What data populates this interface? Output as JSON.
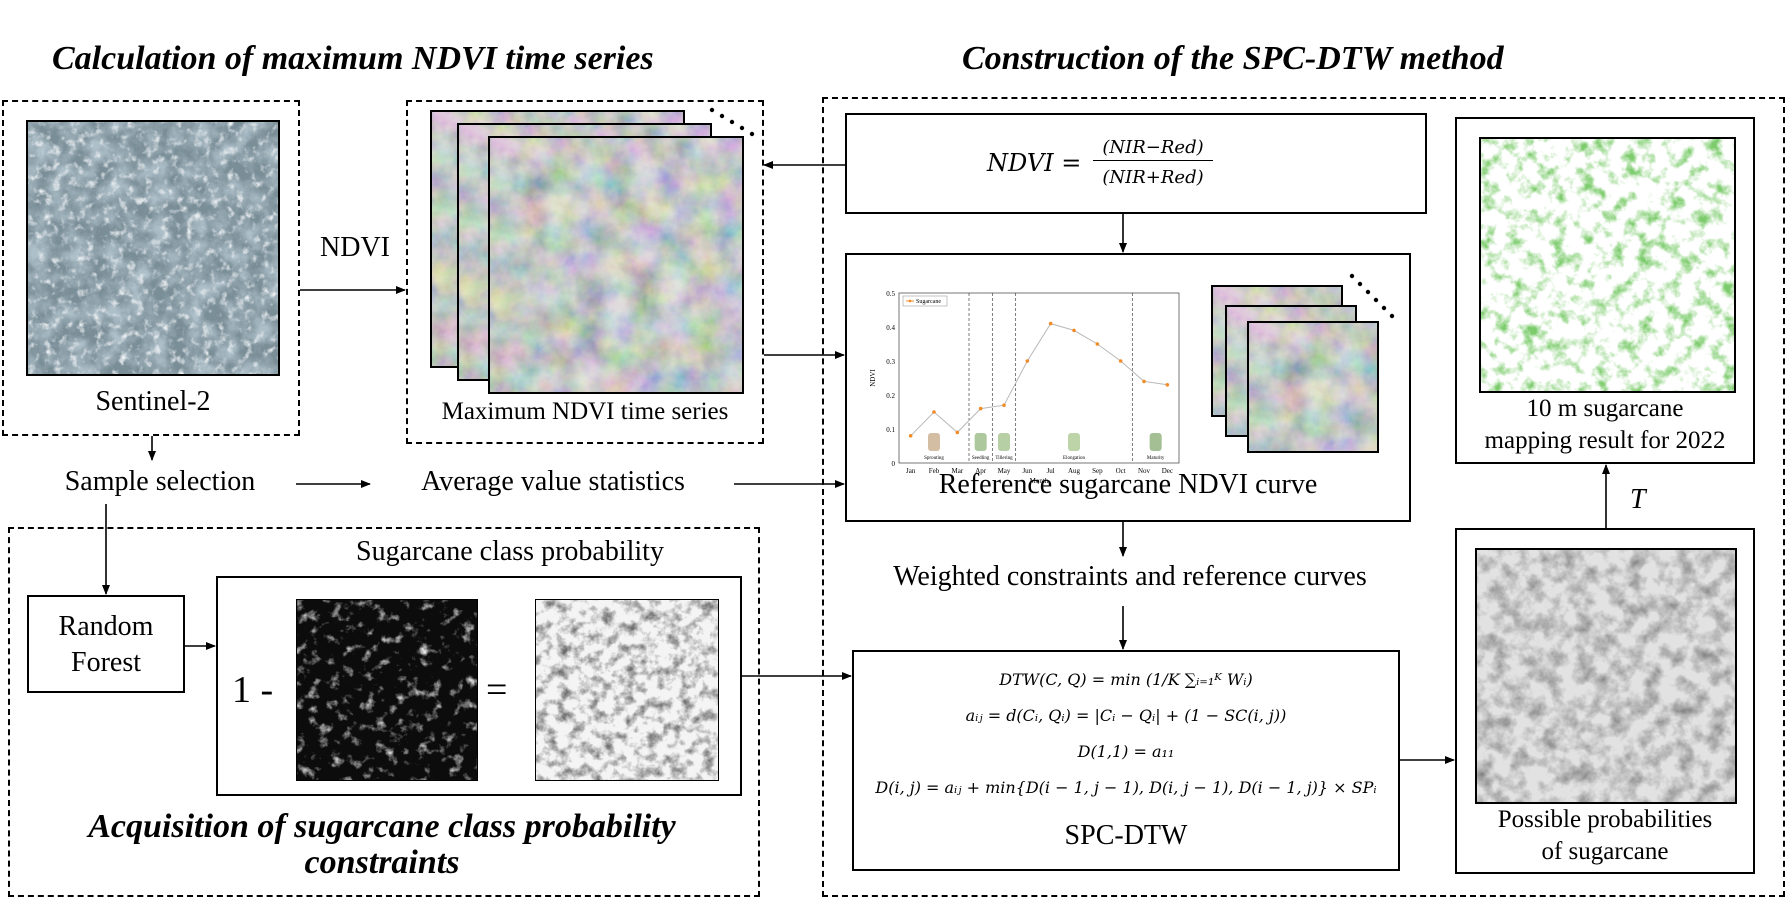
{
  "titles": {
    "left_top": "Calculation of maximum NDVI time series",
    "right_top": "Construction of the SPC-DTW method",
    "bottom_left_line1": "Acquisition of sugarcane class probability",
    "bottom_left_line2": "constraints"
  },
  "labels": {
    "sentinel": "Sentinel-2",
    "ndvi_arrow": "NDVI",
    "max_ndvi": "Maximum  NDVI time series",
    "sample_selection": "Sample selection",
    "average_stats": "Average value statistics",
    "random_forest_line1": "Random",
    "random_forest_line2": "Forest",
    "class_prob": "Sugarcane class probability",
    "one_minus": "1 -",
    "equals": "=",
    "reference_curve": "Reference  sugarcane  NDVI curve",
    "weighted": "Weighted  constraints  and  reference  curves",
    "spc_dtw": "SPC-DTW",
    "possible_line1": "Possible probabilities",
    "possible_line2": "of sugarcane",
    "mapping_line1": "10 m sugarcane",
    "mapping_line2": "mapping result for 2022",
    "t_label": "T"
  },
  "formulas": {
    "ndvi_lhs": "NDVI =",
    "ndvi_num": "(NIR−Red)",
    "ndvi_den": "(NIR+Red)",
    "dtw": "DTW(C, Q) = min (1/K ∑ᵢ₌₁ᴷ Wᵢ)",
    "aij": "aᵢⱼ = d(Cᵢ, Qᵢ) = |Cᵢ − Qᵢ| + (1 − SC(i, j))",
    "d11": "D(1,1) = a₁₁",
    "dij": "D(i, j) = aᵢⱼ + min{D(i − 1, j − 1), D(i, j − 1), D(i − 1, j)} × SPᵢ"
  },
  "chart_data": {
    "type": "line",
    "legend": "Sugarcane",
    "ylabel": "NDVI",
    "xlabel": "Month",
    "x": [
      "Jan",
      "Feb",
      "Mar",
      "Apr",
      "May",
      "Jun",
      "Jul",
      "Aug",
      "Sep",
      "Oct",
      "Nov",
      "Dec"
    ],
    "values": [
      0.08,
      0.15,
      0.09,
      0.16,
      0.17,
      0.3,
      0.41,
      0.39,
      0.35,
      0.3,
      0.24,
      0.23
    ],
    "yticks": [
      "0",
      "0.1",
      "0.2",
      "0.3",
      "0.4",
      "0.5"
    ],
    "ylim": [
      0,
      0.5
    ],
    "stages": [
      "Sprouting",
      "Seedling",
      "Tillering",
      "Elongation",
      "Maturity"
    ],
    "color": "#f28c28"
  },
  "colors": {
    "map_green": "#3a9a2a",
    "curve": "#f28c28"
  }
}
